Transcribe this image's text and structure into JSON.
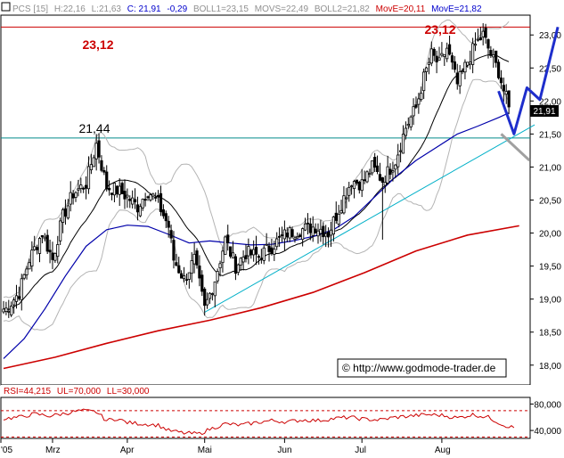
{
  "header": {
    "ticker": "PCS [15]",
    "high": "H:22,16",
    "low": "L:21,63",
    "close": "C: 21,91",
    "change": "-0,29",
    "boll1": "BOLL1=23,15",
    "movs": "MOVS=22,49",
    "boll2": "BOLL2=21,82",
    "move1": "MovE=20,11",
    "move2": "MovE=21,82"
  },
  "annotations": {
    "resistance_left": "23,12",
    "resistance_right": "23,12",
    "support_label": "21,44",
    "last_price": "21,91",
    "copyright": "© http://www.godmode-trader.de"
  },
  "rsi_header": {
    "rsi": "RSI=44,215",
    "ul": "UL=70,000",
    "ll": "LL=30,000"
  },
  "colors": {
    "resistance": "#cc0000",
    "support": "#008b8b",
    "trendline": "#00b0c8",
    "ema_long": "#cc0000",
    "ema_short": "#0000aa",
    "bollinger": "#b4b4b4",
    "movs": "#000000",
    "projection_blue": "#1e2ecc",
    "projection_gray": "#a0a0a0",
    "header_blue": "#0000cc",
    "header_red": "#cc0000",
    "header_gray": "#909090"
  },
  "chart_data": [
    {
      "type": "candlestick",
      "ylim": [
        17.7,
        23.3
      ],
      "y_ticks": [
        "18,00",
        "18,50",
        "19,00",
        "19,50",
        "20,00",
        "20,50",
        "21,00",
        "21,50",
        "22,00",
        "22,50",
        "23,00"
      ],
      "y_tick_values": [
        18.0,
        18.5,
        19.0,
        19.5,
        20.0,
        20.5,
        21.0,
        21.5,
        22.0,
        22.5,
        23.0
      ],
      "x_labels": [
        "'05",
        "Mrz",
        "Apr",
        "Mai",
        "Jun",
        "Jul",
        "Aug"
      ],
      "x_label_days": [
        0,
        19,
        48,
        78,
        109,
        139,
        170
      ],
      "horizontal_levels": [
        23.12,
        21.44
      ],
      "trendline": [
        {
          "day": 78,
          "value": 18.8
        },
        {
          "day": 206,
          "value": 21.64
        }
      ],
      "projection": [
        {
          "day": 198,
          "value": 21.5
        },
        {
          "day": 203,
          "value": 22.2
        },
        {
          "day": 208,
          "value": 22.02
        },
        {
          "day": 215,
          "value": 23.12
        }
      ],
      "gray_projection": [
        {
          "day": 193,
          "value": 21.5
        },
        {
          "day": 204,
          "value": 21.1
        }
      ],
      "candle_anchors": [
        [
          1,
          18.85
        ],
        [
          6,
          19.1
        ],
        [
          10,
          19.6
        ],
        [
          15,
          20.0
        ],
        [
          19,
          19.6
        ],
        [
          23,
          20.25
        ],
        [
          27,
          20.6
        ],
        [
          32,
          20.75
        ],
        [
          36,
          21.35
        ],
        [
          40,
          20.7
        ],
        [
          44,
          20.65
        ],
        [
          48,
          20.55
        ],
        [
          52,
          20.4
        ],
        [
          56,
          20.65
        ],
        [
          60,
          20.45
        ],
        [
          64,
          20.1
        ],
        [
          66,
          19.6
        ],
        [
          70,
          19.3
        ],
        [
          74,
          19.6
        ],
        [
          78,
          18.85
        ],
        [
          82,
          19.3
        ],
        [
          86,
          19.9
        ],
        [
          90,
          19.5
        ],
        [
          94,
          19.7
        ],
        [
          99,
          19.65
        ],
        [
          104,
          19.8
        ],
        [
          110,
          20.0
        ],
        [
          115,
          20.05
        ],
        [
          121,
          20.1
        ],
        [
          126,
          20.0
        ],
        [
          131,
          20.45
        ],
        [
          135,
          20.8
        ],
        [
          139,
          20.75
        ],
        [
          143,
          21.0
        ],
        [
          147,
          20.8
        ],
        [
          152,
          21.1
        ],
        [
          156,
          21.6
        ],
        [
          160,
          21.9
        ],
        [
          163,
          22.35
        ],
        [
          166,
          22.7
        ],
        [
          169,
          22.55
        ],
        [
          172,
          22.8
        ],
        [
          176,
          22.25
        ],
        [
          180,
          22.6
        ],
        [
          183,
          22.85
        ],
        [
          186,
          23.0
        ],
        [
          189,
          22.7
        ],
        [
          192,
          22.45
        ],
        [
          194,
          22.16
        ],
        [
          196,
          21.91
        ]
      ],
      "ema_long": [
        [
          0,
          17.95
        ],
        [
          20,
          18.12
        ],
        [
          40,
          18.33
        ],
        [
          60,
          18.52
        ],
        [
          80,
          18.68
        ],
        [
          100,
          18.87
        ],
        [
          120,
          19.1
        ],
        [
          140,
          19.4
        ],
        [
          160,
          19.73
        ],
        [
          180,
          19.97
        ],
        [
          200,
          20.11
        ]
      ],
      "ema_short": [
        [
          0,
          18.1
        ],
        [
          8,
          18.4
        ],
        [
          16,
          18.85
        ],
        [
          24,
          19.35
        ],
        [
          32,
          19.8
        ],
        [
          40,
          20.05
        ],
        [
          48,
          20.12
        ],
        [
          56,
          20.1
        ],
        [
          64,
          19.98
        ],
        [
          72,
          19.85
        ],
        [
          80,
          19.88
        ],
        [
          88,
          19.85
        ],
        [
          96,
          19.82
        ],
        [
          104,
          19.83
        ],
        [
          112,
          19.88
        ],
        [
          120,
          19.95
        ],
        [
          128,
          20.05
        ],
        [
          136,
          20.25
        ],
        [
          144,
          20.55
        ],
        [
          152,
          20.85
        ],
        [
          160,
          21.1
        ],
        [
          168,
          21.3
        ],
        [
          176,
          21.5
        ],
        [
          184,
          21.62
        ],
        [
          192,
          21.75
        ],
        [
          196,
          21.82
        ]
      ]
    },
    {
      "type": "line",
      "title": "RSI",
      "ylim": [
        28,
        90
      ],
      "y_ticks": [
        "80,000",
        "40,000"
      ],
      "y_tick_values": [
        80,
        40
      ],
      "upper_level": 70,
      "lower_level": 30,
      "values": [
        [
          0,
          58
        ],
        [
          6,
          60
        ],
        [
          12,
          65
        ],
        [
          18,
          62
        ],
        [
          24,
          66
        ],
        [
          30,
          70
        ],
        [
          36,
          68
        ],
        [
          40,
          55
        ],
        [
          44,
          58
        ],
        [
          48,
          52
        ],
        [
          54,
          50
        ],
        [
          60,
          48
        ],
        [
          64,
          40
        ],
        [
          70,
          36
        ],
        [
          76,
          35
        ],
        [
          80,
          42
        ],
        [
          86,
          50
        ],
        [
          92,
          48
        ],
        [
          98,
          52
        ],
        [
          104,
          55
        ],
        [
          110,
          53
        ],
        [
          116,
          56
        ],
        [
          122,
          55
        ],
        [
          128,
          58
        ],
        [
          134,
          60
        ],
        [
          140,
          57
        ],
        [
          146,
          56
        ],
        [
          152,
          60
        ],
        [
          158,
          62
        ],
        [
          164,
          64
        ],
        [
          170,
          63
        ],
        [
          176,
          59
        ],
        [
          182,
          64
        ],
        [
          188,
          60
        ],
        [
          194,
          48
        ],
        [
          198,
          44.2
        ]
      ]
    }
  ]
}
